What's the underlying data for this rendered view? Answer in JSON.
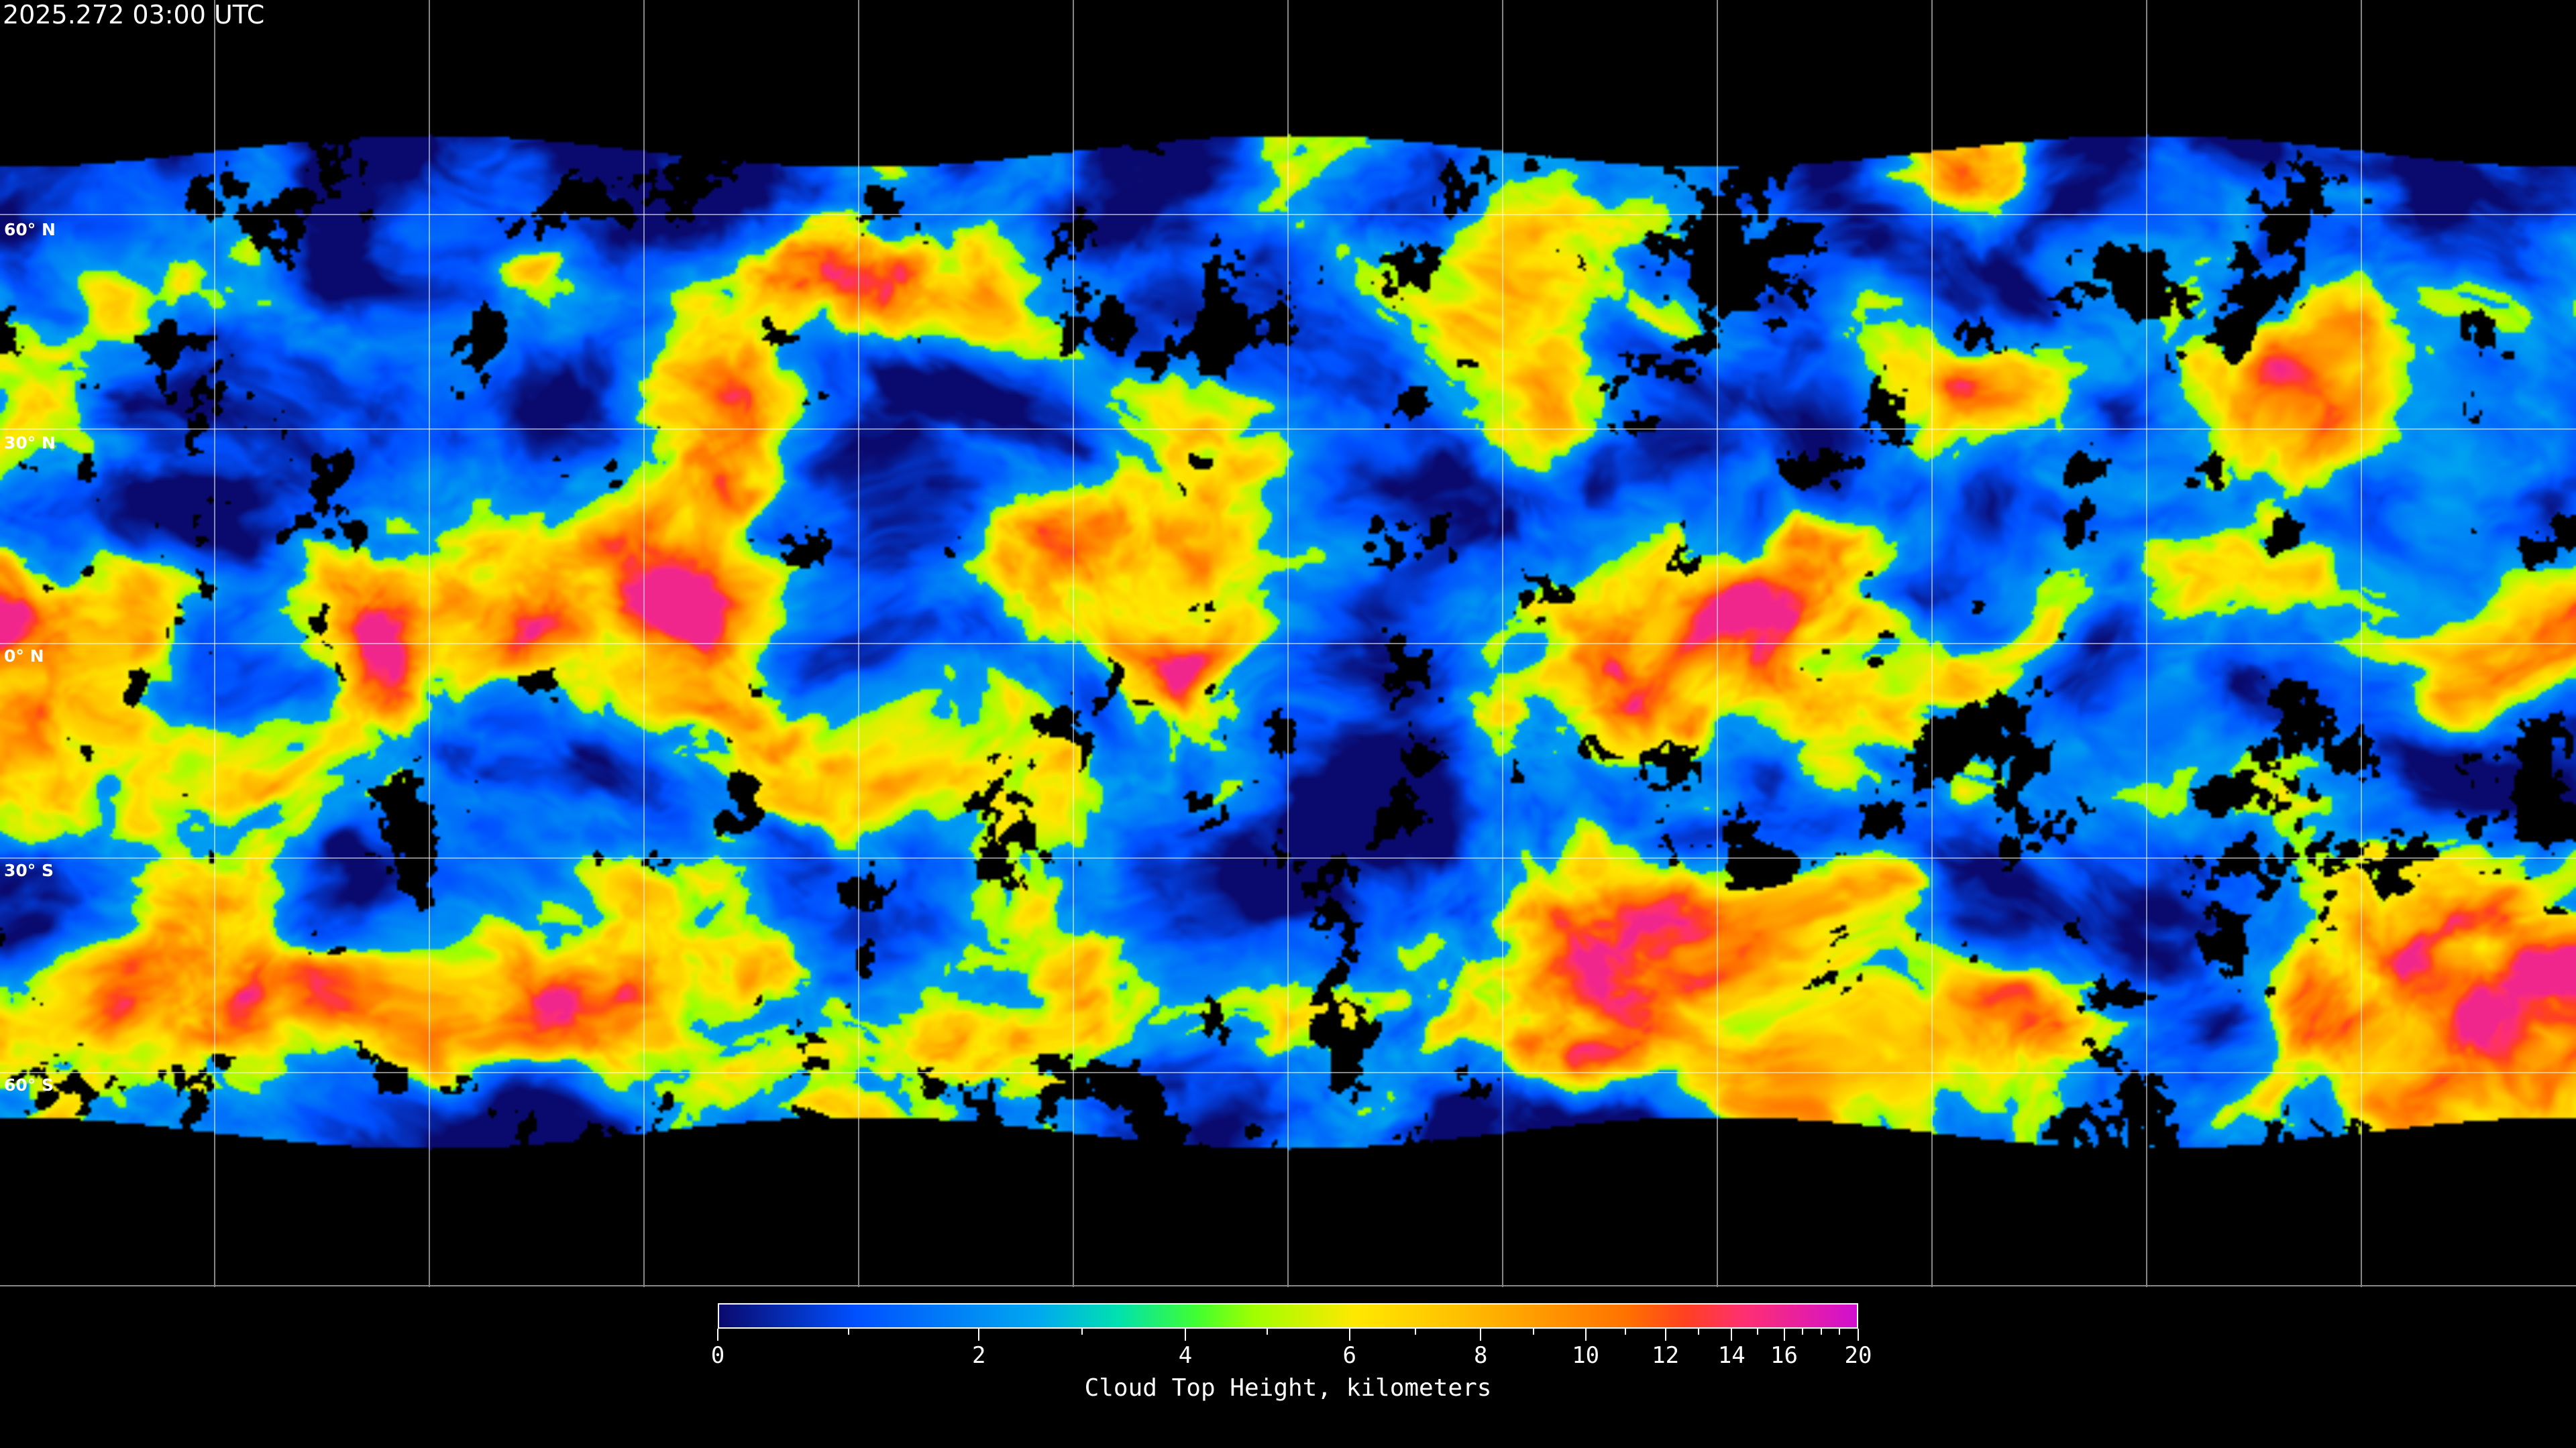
{
  "header": {
    "title": "2025.272 03:00 UTC"
  },
  "map": {
    "projection": "equirectangular",
    "lat_labels": [
      "60° N",
      "30° N",
      "0° N",
      "30° S",
      "60° S"
    ],
    "grid_spacing_degrees": 30,
    "clear_sky_color": "#000000",
    "grid_color": "#ffffff"
  },
  "colorbar": {
    "title": "Cloud Top Height, kilometers",
    "min": 0,
    "max": 20,
    "major_ticks": [
      {
        "value": 0,
        "label": "0"
      },
      {
        "value": 2,
        "label": "2"
      },
      {
        "value": 4,
        "label": "4"
      },
      {
        "value": 6,
        "label": "6"
      },
      {
        "value": 8,
        "label": "8"
      },
      {
        "value": 10,
        "label": "10"
      },
      {
        "value": 12,
        "label": "12"
      },
      {
        "value": 14,
        "label": "14"
      },
      {
        "value": 16,
        "label": "16"
      },
      {
        "value": 20,
        "label": "20"
      }
    ],
    "minor_ticks": [
      1,
      3,
      5,
      7,
      9,
      11,
      13,
      15,
      17,
      18,
      19
    ],
    "colors": [
      "#0a0a6e",
      "#0050ff",
      "#00a8f0",
      "#00e0b0",
      "#40ff30",
      "#a0ff00",
      "#ffe800",
      "#ffc000",
      "#ff7000",
      "#ff4020",
      "#ff3070",
      "#d010d0"
    ]
  }
}
